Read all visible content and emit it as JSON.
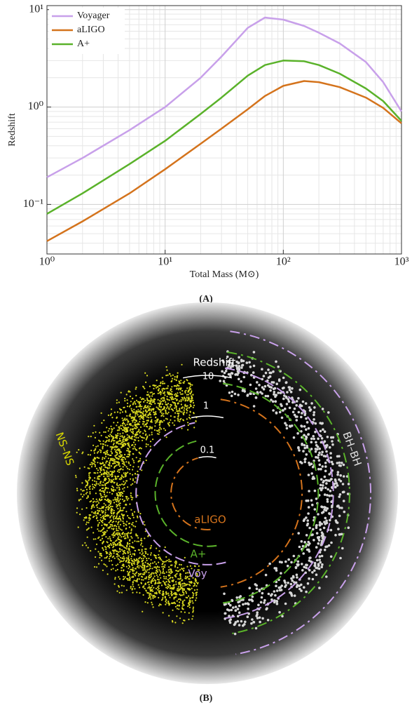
{
  "chart_data": {
    "type": "line",
    "x_label": "Total Mass (M⊙)",
    "y_label": "Redshift",
    "x": [
      1,
      2,
      5,
      10,
      20,
      30,
      50,
      70,
      100,
      150,
      200,
      300,
      500,
      700,
      1000
    ],
    "series": [
      {
        "name": "Voyager",
        "color": "#c8a0ea",
        "values": [
          0.19,
          0.3,
          0.58,
          1.0,
          2.0,
          3.3,
          6.5,
          8.3,
          7.9,
          6.8,
          5.8,
          4.5,
          2.9,
          1.8,
          0.9
        ]
      },
      {
        "name": "aLIGO",
        "color": "#d4731c",
        "values": [
          0.042,
          0.067,
          0.13,
          0.23,
          0.42,
          0.6,
          0.95,
          1.3,
          1.65,
          1.85,
          1.8,
          1.6,
          1.25,
          0.98,
          0.68
        ]
      },
      {
        "name": "A+",
        "color": "#5ab22a",
        "values": [
          0.08,
          0.13,
          0.26,
          0.45,
          0.85,
          1.25,
          2.1,
          2.7,
          3.0,
          2.95,
          2.7,
          2.2,
          1.55,
          1.15,
          0.72
        ]
      }
    ],
    "xlim": [
      1,
      1000
    ],
    "ylim": [
      0.031,
      11
    ],
    "xticks": [
      {
        "value": 1,
        "label": "10⁰"
      },
      {
        "value": 10,
        "label": "10¹"
      },
      {
        "value": 100,
        "label": "10²"
      },
      {
        "value": 1000,
        "label": "10³"
      }
    ],
    "yticks": [
      {
        "value": 0.1,
        "label": "10⁻¹"
      },
      {
        "value": 1,
        "label": "10⁰"
      },
      {
        "value": 10,
        "label": "10¹"
      }
    ],
    "x_log": true,
    "y_log": true,
    "grid": true,
    "legend": "upper left"
  },
  "panel_labels": [
    "(A)",
    "(B)"
  ],
  "diagram": {
    "title": "Redshift",
    "radial_ticks": [
      "10",
      "1",
      "0.1"
    ],
    "labels": {
      "ns": "NS–NS",
      "bh": "BH–BH",
      "aligo": "aLIGO",
      "aplus": "A+",
      "voy": "Voy"
    }
  }
}
